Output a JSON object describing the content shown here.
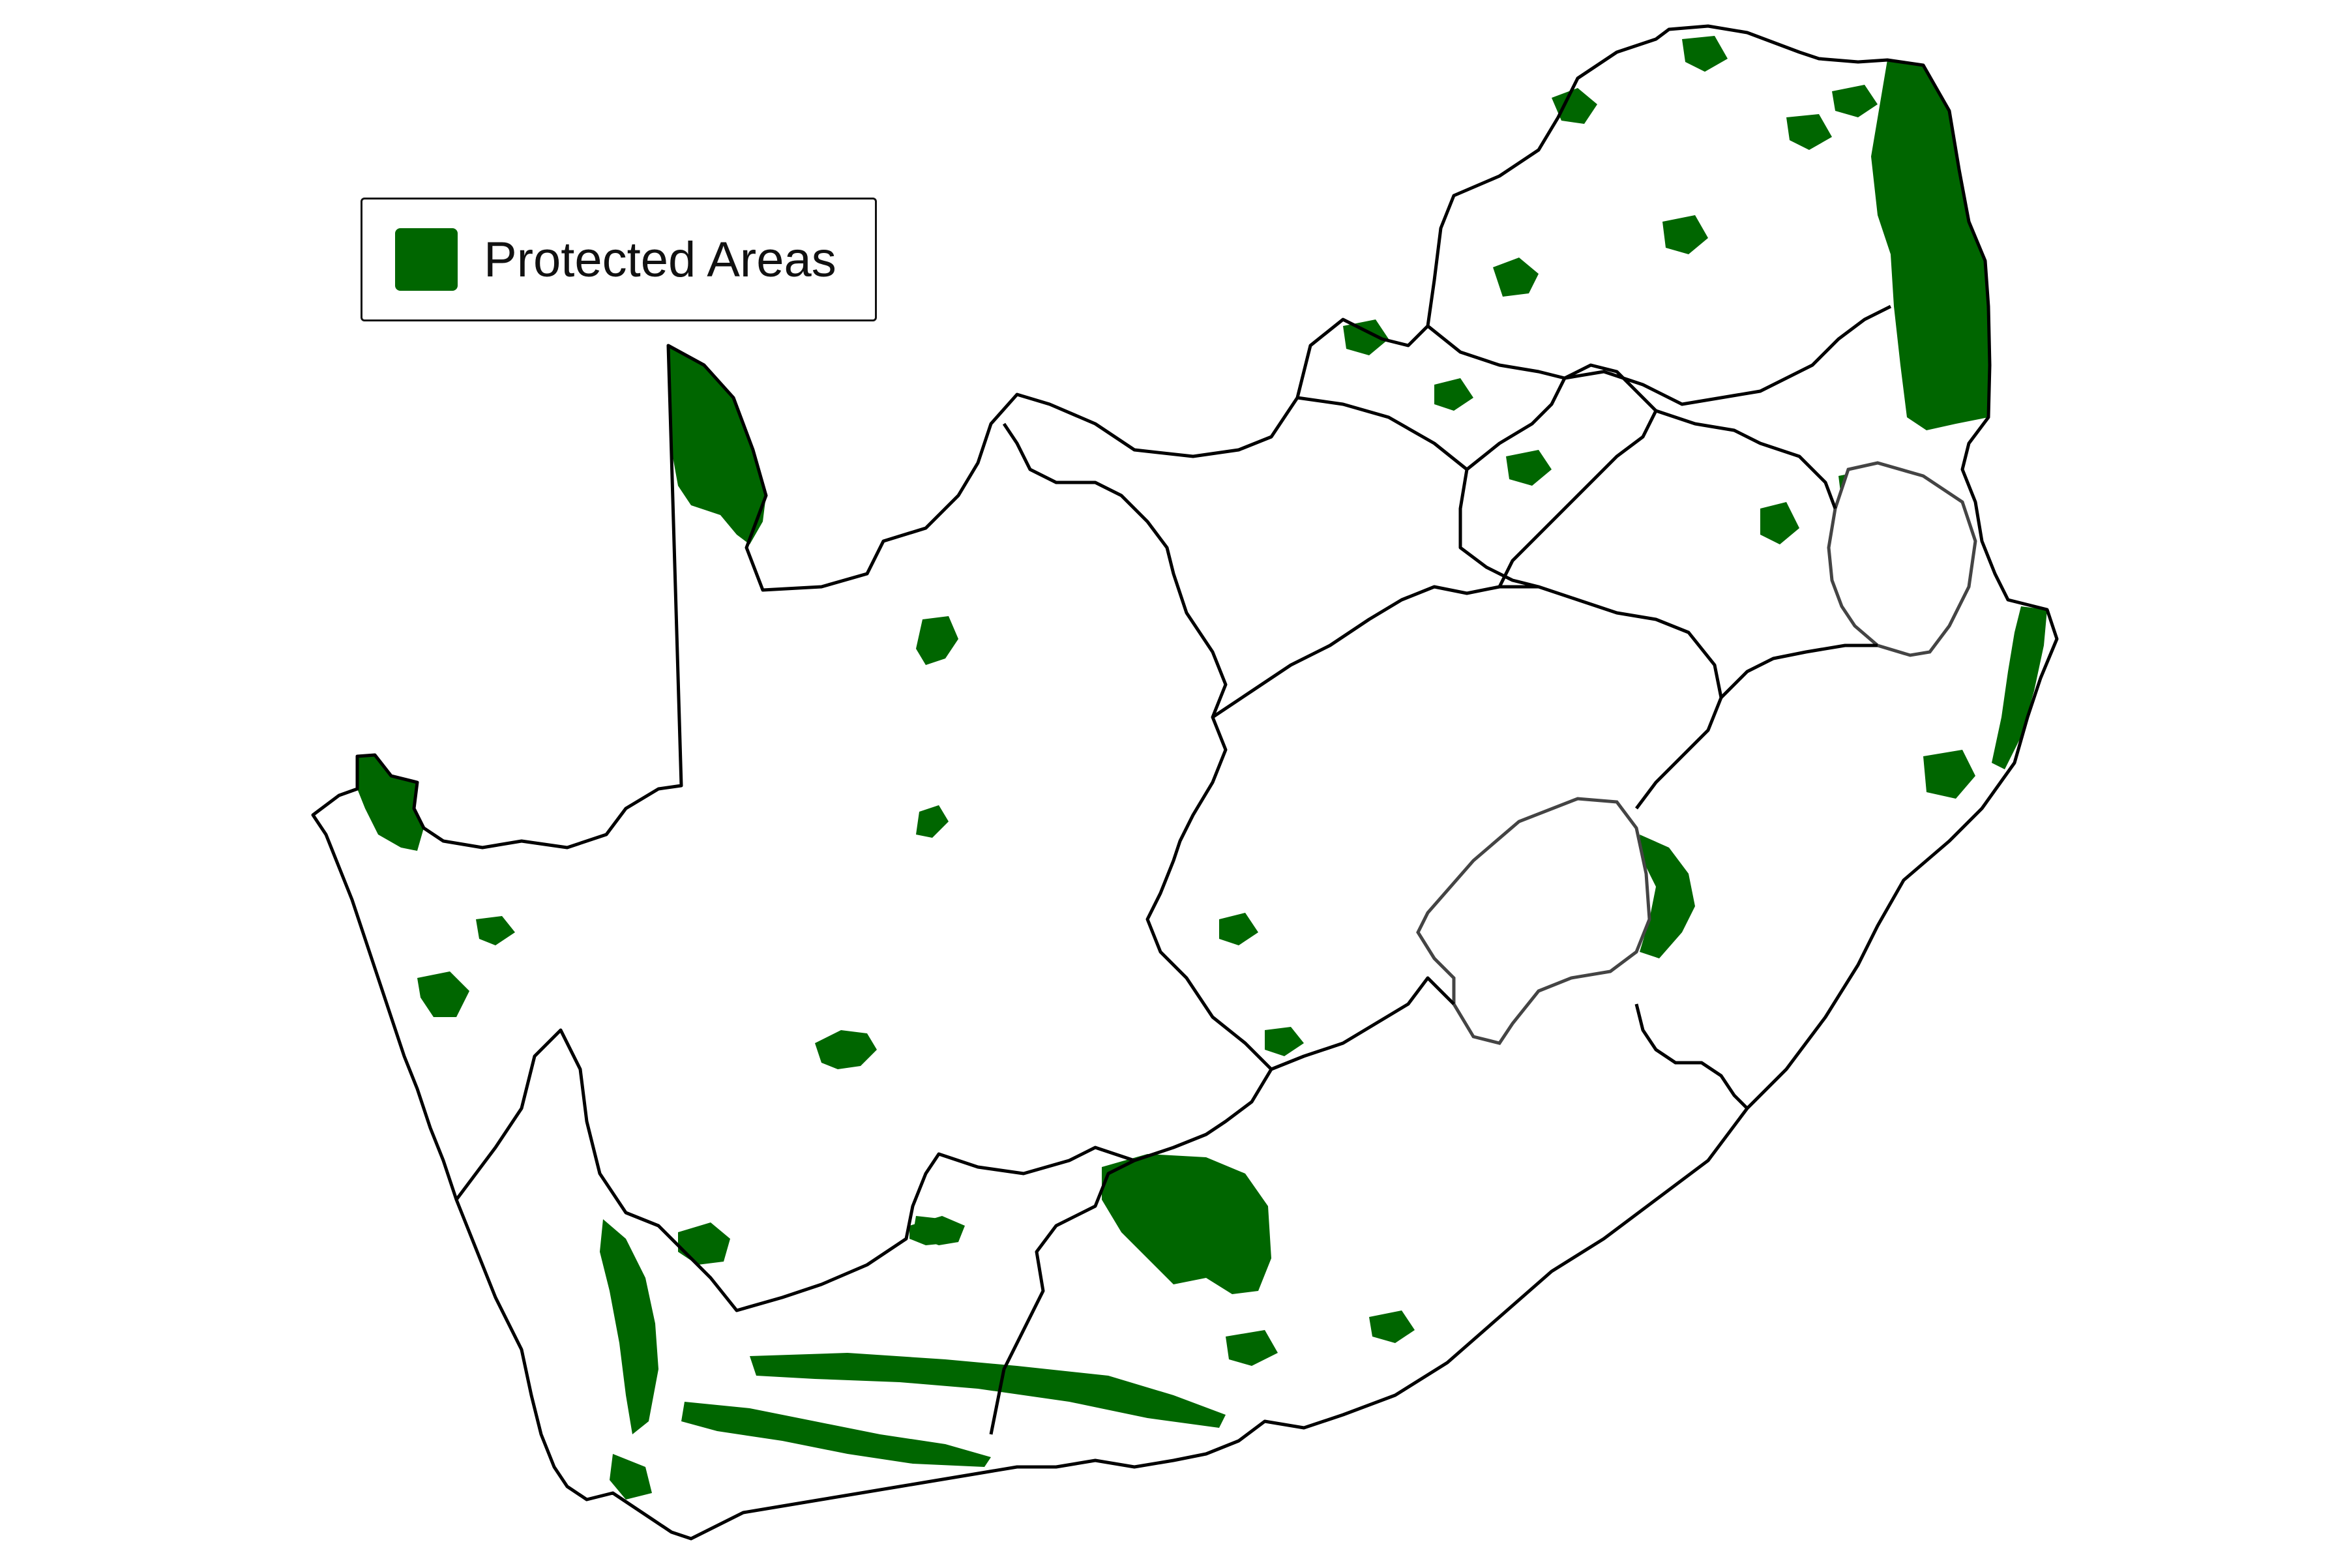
{
  "legend": {
    "label": "Protected Areas",
    "swatch_color": "#006600"
  },
  "colors": {
    "protected_fill": "#006600",
    "background": "#ffffff",
    "province_border": "#000000",
    "neighbor_border": "#444444"
  }
}
